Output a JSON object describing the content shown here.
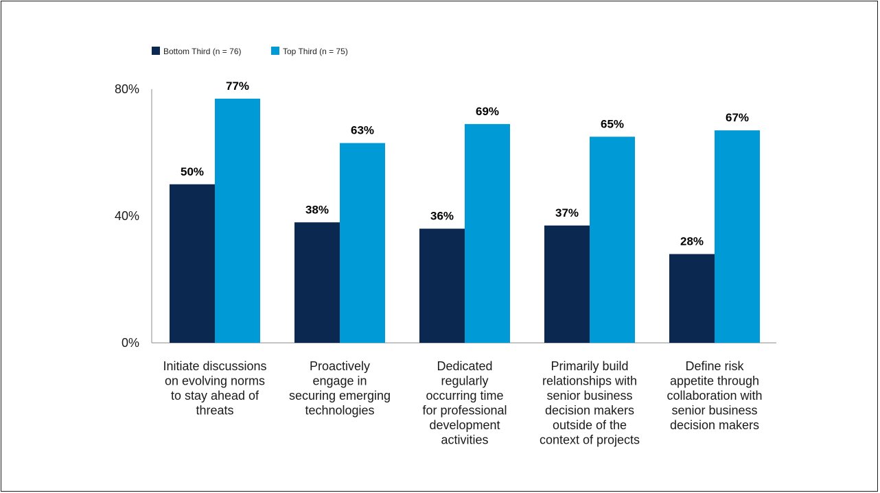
{
  "chart_data": {
    "type": "bar",
    "title": "",
    "xlabel": "",
    "ylabel": "",
    "ylim": [
      0,
      80
    ],
    "yticks": [
      "0%",
      "40%",
      "80%"
    ],
    "ytick_values": [
      0,
      40,
      80
    ],
    "grid": false,
    "legend_position": "top-left",
    "categories": [
      [
        "Initiate discussions",
        "on evolving norms",
        "to stay ahead of",
        "threats"
      ],
      [
        "Proactively",
        "engage in",
        "securing emerging",
        "technologies"
      ],
      [
        "Dedicated",
        "regularly",
        "occurring time",
        "for professional",
        "development",
        "activities"
      ],
      [
        "Primarily build",
        "relationships with",
        "senior business",
        "decision makers",
        "outside of the",
        "context of projects"
      ],
      [
        "Define risk",
        "appetite through",
        "collaboration with",
        "senior business",
        "decision makers"
      ]
    ],
    "series": [
      {
        "name": "Bottom Third (n = 76)",
        "color": "#0b2851",
        "values": [
          50,
          38,
          36,
          37,
          28
        ],
        "labels": [
          "50%",
          "38%",
          "36%",
          "37%",
          "28%"
        ]
      },
      {
        "name": "Top Third (n = 75)",
        "color": "#009ad7",
        "values": [
          77,
          63,
          69,
          65,
          67
        ],
        "labels": [
          "77%",
          "63%",
          "69%",
          "65%",
          "67%"
        ]
      }
    ]
  }
}
